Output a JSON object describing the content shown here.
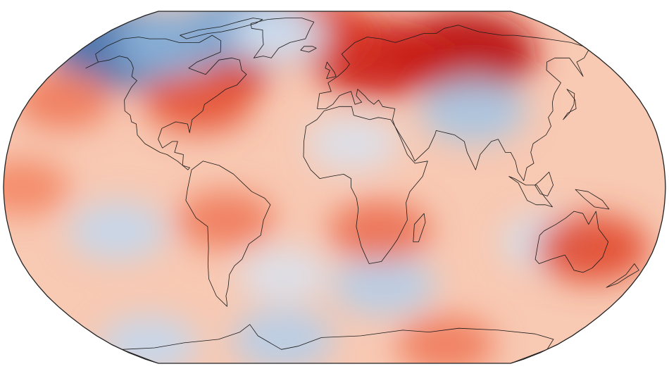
{
  "map": {
    "kind": "global temperature anomaly",
    "projection": "robinson",
    "colormap": "RdBu_r",
    "ocean_base_color": "#f8c9b3",
    "land_outline_color": "#1a1a1a",
    "frame_color": "#222222",
    "anomaly_regions": [
      {
        "name": "eurasia-siberia",
        "lon": 90,
        "lat": 62,
        "strength": 1.0
      },
      {
        "name": "northern-europe",
        "lon": 30,
        "lat": 60,
        "strength": 0.85
      },
      {
        "name": "canada-east",
        "lon": -85,
        "lat": 58,
        "strength": 0.85
      },
      {
        "name": "usa-east",
        "lon": -80,
        "lat": 40,
        "strength": 0.55
      },
      {
        "name": "greenland-east",
        "lon": -20,
        "lat": 75,
        "strength": 0.7
      },
      {
        "name": "alaska",
        "lon": -155,
        "lat": 65,
        "strength": -0.9
      },
      {
        "name": "yukon",
        "lon": -120,
        "lat": 68,
        "strength": -0.6
      },
      {
        "name": "canadian-arctic-islands",
        "lon": -75,
        "lat": 78,
        "strength": -0.65
      },
      {
        "name": "greenland-center",
        "lon": -42,
        "lat": 72,
        "strength": -0.35
      },
      {
        "name": "central-asia",
        "lon": 80,
        "lat": 35,
        "strength": -0.5
      },
      {
        "name": "sahara",
        "lon": 10,
        "lat": 20,
        "strength": -0.3
      },
      {
        "name": "southern-ocean-south-africa",
        "lon": 30,
        "lat": -45,
        "strength": -0.45
      },
      {
        "name": "east-pacific",
        "lon": -120,
        "lat": -20,
        "strength": -0.4
      },
      {
        "name": "south-atlantic",
        "lon": -30,
        "lat": -40,
        "strength": -0.3
      },
      {
        "name": "australia-west",
        "lon": 120,
        "lat": -25,
        "strength": -0.35
      },
      {
        "name": "australia-east",
        "lon": 145,
        "lat": -28,
        "strength": 0.6
      },
      {
        "name": "south-america",
        "lon": -60,
        "lat": -15,
        "strength": 0.4
      },
      {
        "name": "southern-africa",
        "lon": 25,
        "lat": -20,
        "strength": 0.45
      },
      {
        "name": "ross-sea",
        "lon": -150,
        "lat": -75,
        "strength": -0.4
      },
      {
        "name": "weddell-sea",
        "lon": -40,
        "lat": -72,
        "strength": -0.45
      },
      {
        "name": "east-antarctica",
        "lon": 90,
        "lat": -75,
        "strength": 0.4
      },
      {
        "name": "north-pacific",
        "lon": -160,
        "lat": 40,
        "strength": 0.4
      },
      {
        "name": "tropical-pacific",
        "lon": -170,
        "lat": 0,
        "strength": 0.35
      }
    ]
  }
}
